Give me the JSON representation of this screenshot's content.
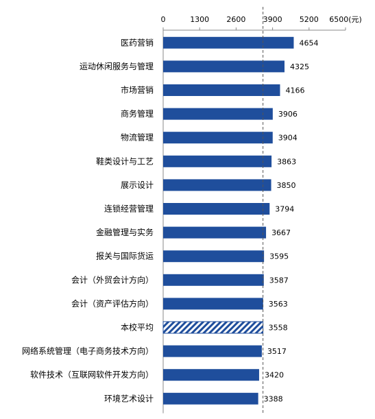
{
  "chart_data": {
    "type": "bar",
    "orientation": "horizontal",
    "categories": [
      "医药营销",
      "运动休闲服务与管理",
      "市场营销",
      "商务管理",
      "物流管理",
      "鞋类设计与工艺",
      "展示设计",
      "连锁经营管理",
      "金融管理与实务",
      "报关与国际货运",
      "会计（外贸会计方向）",
      "会计（资产评估方向）",
      "本校平均",
      "网络系统管理（电子商务技术方向）",
      "软件技术（互联网软件开发方向）",
      "环境艺术设计"
    ],
    "values": [
      4654,
      4325,
      4166,
      3906,
      3904,
      3863,
      3850,
      3794,
      3667,
      3595,
      3587,
      3563,
      3558,
      3517,
      3420,
      3388
    ],
    "highlight_category": "本校平均",
    "x_ticks": [
      "0",
      "1300",
      "2600",
      "3900",
      "5200",
      "6500"
    ],
    "x_unit": "(元)",
    "xlim": [
      0,
      6500
    ],
    "reference_line": 3558,
    "title": "",
    "xlabel": "",
    "ylabel": "",
    "grid": false,
    "axis_position": "top",
    "colors": {
      "bar": "#1f4e9c",
      "highlight": "#1f4e9c",
      "reference_line": "#555555"
    }
  }
}
